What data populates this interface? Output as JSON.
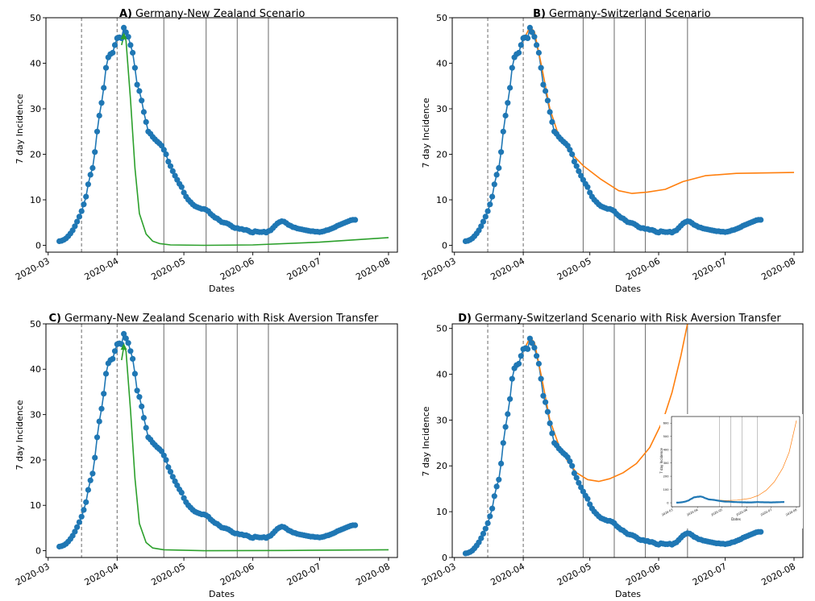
{
  "chart_data": [
    {
      "panel": "A",
      "type": "line",
      "title_letter": "A)",
      "title": "Germany-New Zealand Scenario",
      "xlabel": "Dates",
      "ylabel": "7 day Incidence",
      "ylim": [
        -1.5,
        50
      ],
      "yticks": [
        0,
        10,
        20,
        30,
        40,
        50
      ],
      "xticks": [
        "2020-03",
        "2020-04",
        "2020-05",
        "2020-06",
        "2020-07",
        "2020-08"
      ],
      "dashed_lines": [
        "2020-03-16",
        "2020-04-01"
      ],
      "solid_lines": [
        "2020-04-22",
        "2020-05-11",
        "2020-05-25",
        "2020-06-08"
      ],
      "scenario": {
        "name": "",
        "color": "#2ca02c",
        "points": [
          [
            "2020-04-03",
            44
          ],
          [
            "2020-04-04",
            46
          ],
          [
            "2020-04-05",
            45
          ],
          [
            "2020-04-07",
            32
          ],
          [
            "2020-04-09",
            17
          ],
          [
            "2020-04-11",
            7
          ],
          [
            "2020-04-14",
            2.5
          ],
          [
            "2020-04-17",
            0.9
          ],
          [
            "2020-04-20",
            0.4
          ],
          [
            "2020-04-25",
            0.1
          ],
          [
            "2020-05-10",
            0
          ],
          [
            "2020-06-01",
            0.1
          ],
          [
            "2020-07-01",
            0.7
          ],
          [
            "2020-08-01",
            1.7
          ]
        ]
      }
    },
    {
      "panel": "B",
      "type": "line",
      "title_letter": "B)",
      "title": "Germany-Switzerland Scenario",
      "xlabel": "Dates",
      "ylabel": "7 day Incidence",
      "ylim": [
        -1.5,
        50
      ],
      "yticks": [
        0,
        10,
        20,
        30,
        40,
        50
      ],
      "xticks": [
        "2020-03",
        "2020-04",
        "2020-05",
        "2020-06",
        "2020-07",
        "2020-08"
      ],
      "dashed_lines": [
        "2020-03-16",
        "2020-04-01"
      ],
      "solid_lines": [
        "2020-04-28",
        "2020-05-12",
        "2020-05-26",
        "2020-06-14"
      ],
      "scenario": {
        "name": "",
        "color": "#ff7f0e",
        "points": [
          [
            "2020-04-01",
            45
          ],
          [
            "2020-04-04",
            48
          ],
          [
            "2020-04-06",
            47
          ],
          [
            "2020-04-09",
            40
          ],
          [
            "2020-04-13",
            30
          ],
          [
            "2020-04-17",
            24
          ],
          [
            "2020-04-22",
            20.5
          ],
          [
            "2020-04-28",
            17.5
          ],
          [
            "2020-05-06",
            14.5
          ],
          [
            "2020-05-14",
            12
          ],
          [
            "2020-05-20",
            11.4
          ],
          [
            "2020-05-27",
            11.7
          ],
          [
            "2020-06-04",
            12.3
          ],
          [
            "2020-06-12",
            14
          ],
          [
            "2020-06-22",
            15.3
          ],
          [
            "2020-07-06",
            15.8
          ],
          [
            "2020-08-01",
            16
          ]
        ]
      }
    },
    {
      "panel": "C",
      "type": "line",
      "title_letter": "C)",
      "title": "Germany-New Zealand Scenario with Risk Aversion Transfer",
      "xlabel": "Dates",
      "ylabel": "7 day Incidence",
      "ylim": [
        -1.5,
        50
      ],
      "yticks": [
        0,
        10,
        20,
        30,
        40,
        50
      ],
      "xticks": [
        "2020-03",
        "2020-04",
        "2020-05",
        "2020-06",
        "2020-07",
        "2020-08"
      ],
      "dashed_lines": [
        "2020-03-16",
        "2020-04-01"
      ],
      "solid_lines": [
        "2020-04-22",
        "2020-05-11",
        "2020-05-25",
        "2020-06-08"
      ],
      "scenario": {
        "name": "",
        "color": "#2ca02c",
        "points": [
          [
            "2020-04-03",
            42
          ],
          [
            "2020-04-04",
            45
          ],
          [
            "2020-04-05",
            44
          ],
          [
            "2020-04-07",
            31
          ],
          [
            "2020-04-09",
            16
          ],
          [
            "2020-04-11",
            6
          ],
          [
            "2020-04-14",
            1.8
          ],
          [
            "2020-04-17",
            0.6
          ],
          [
            "2020-04-22",
            0.2
          ],
          [
            "2020-05-10",
            0
          ],
          [
            "2020-06-15",
            0.05
          ],
          [
            "2020-08-01",
            0.2
          ]
        ]
      }
    },
    {
      "panel": "D",
      "type": "line",
      "title_letter": "D)",
      "title": "Germany-Switzerland Scenario with Risk Aversion Transfer",
      "xlabel": "Dates",
      "ylabel": "7 day Incidence",
      "ylim": [
        0,
        51
      ],
      "yticks": [
        0,
        10,
        20,
        30,
        40,
        50
      ],
      "xticks": [
        "2020-03",
        "2020-04",
        "2020-05",
        "2020-06",
        "2020-07",
        "2020-08"
      ],
      "dashed_lines": [
        "2020-03-16",
        "2020-04-01"
      ],
      "solid_lines": [
        "2020-04-28",
        "2020-05-12",
        "2020-05-26",
        "2020-06-14"
      ],
      "scenario": {
        "name": "",
        "color": "#ff7f0e",
        "points": [
          [
            "2020-04-01",
            45
          ],
          [
            "2020-04-04",
            48
          ],
          [
            "2020-04-06",
            47
          ],
          [
            "2020-04-09",
            40
          ],
          [
            "2020-04-13",
            30
          ],
          [
            "2020-04-17",
            24.5
          ],
          [
            "2020-04-21",
            21
          ],
          [
            "2020-04-25",
            18.5
          ],
          [
            "2020-04-30",
            17
          ],
          [
            "2020-05-05",
            16.6
          ],
          [
            "2020-05-10",
            17.2
          ],
          [
            "2020-05-16",
            18.5
          ],
          [
            "2020-05-22",
            20.5
          ],
          [
            "2020-05-28",
            24
          ],
          [
            "2020-06-03",
            30
          ],
          [
            "2020-06-07",
            36
          ],
          [
            "2020-06-11",
            44
          ],
          [
            "2020-06-14",
            51
          ]
        ]
      },
      "inset": {
        "xlabel": "Dates",
        "ylabel": "7 day Incidence",
        "ylim": [
          -30,
          650
        ],
        "yticks": [
          0,
          100,
          200,
          300,
          400,
          500,
          600
        ],
        "xticks": [
          "2020-03",
          "2020-04",
          "2020-05",
          "2020-06",
          "2020-07",
          "2020-08"
        ],
        "solid_lines": [
          "2020-04-28",
          "2020-05-12",
          "2020-05-26",
          "2020-06-14"
        ],
        "scenario_points": [
          [
            "2020-04-01",
            45
          ],
          [
            "2020-04-04",
            48
          ],
          [
            "2020-04-17",
            24
          ],
          [
            "2020-05-05",
            17
          ],
          [
            "2020-05-20",
            20
          ],
          [
            "2020-06-05",
            33
          ],
          [
            "2020-06-15",
            55
          ],
          [
            "2020-06-25",
            95
          ],
          [
            "2020-07-05",
            160
          ],
          [
            "2020-07-15",
            260
          ],
          [
            "2020-07-23",
            380
          ],
          [
            "2020-08-01",
            620
          ]
        ]
      }
    }
  ],
  "observed": {
    "name": "",
    "line_color": "#1f77b4",
    "marker_color": "#1f77b4",
    "start_date": "2020-03-06",
    "values": [
      0.9,
      1.0,
      1.2,
      1.5,
      2.0,
      2.6,
      3.3,
      4.2,
      5.2,
      6.3,
      7.5,
      9.0,
      10.7,
      13.4,
      15.5,
      17.0,
      20.5,
      25.0,
      28.5,
      31.3,
      34.6,
      39.0,
      41.3,
      42.0,
      42.3,
      44.0,
      45.5,
      45.7,
      45.5,
      47.8,
      46.8,
      45.8,
      44.0,
      42.3,
      39.0,
      35.3,
      33.9,
      31.8,
      29.3,
      27.1,
      25.0,
      24.5,
      23.8,
      23.3,
      22.8,
      22.4,
      21.9,
      21.0,
      20.0,
      18.4,
      17.4,
      16.3,
      15.3,
      14.4,
      13.5,
      12.8,
      11.6,
      10.7,
      10.0,
      9.5,
      9.0,
      8.6,
      8.4,
      8.2,
      8.0,
      8.0,
      7.8,
      7.5,
      6.9,
      6.5,
      6.1,
      5.9,
      5.5,
      5.1,
      5.0,
      4.9,
      4.7,
      4.4,
      4.0,
      3.8,
      3.8,
      3.6,
      3.6,
      3.4,
      3.4,
      3.2,
      2.9,
      2.8,
      3.1,
      3.0,
      2.9,
      2.9,
      3.0,
      2.8,
      3.1,
      3.3,
      3.8,
      4.3,
      4.8,
      5.1,
      5.3,
      5.2,
      4.9,
      4.5,
      4.3,
      4.0,
      3.9,
      3.7,
      3.6,
      3.5,
      3.4,
      3.3,
      3.2,
      3.1,
      3.1,
      3.0,
      3.0,
      2.9,
      3.0,
      3.1,
      3.3,
      3.4,
      3.6,
      3.8,
      4.0,
      4.3,
      4.5,
      4.7,
      4.9,
      5.1,
      5.3,
      5.5,
      5.6,
      5.6
    ]
  }
}
